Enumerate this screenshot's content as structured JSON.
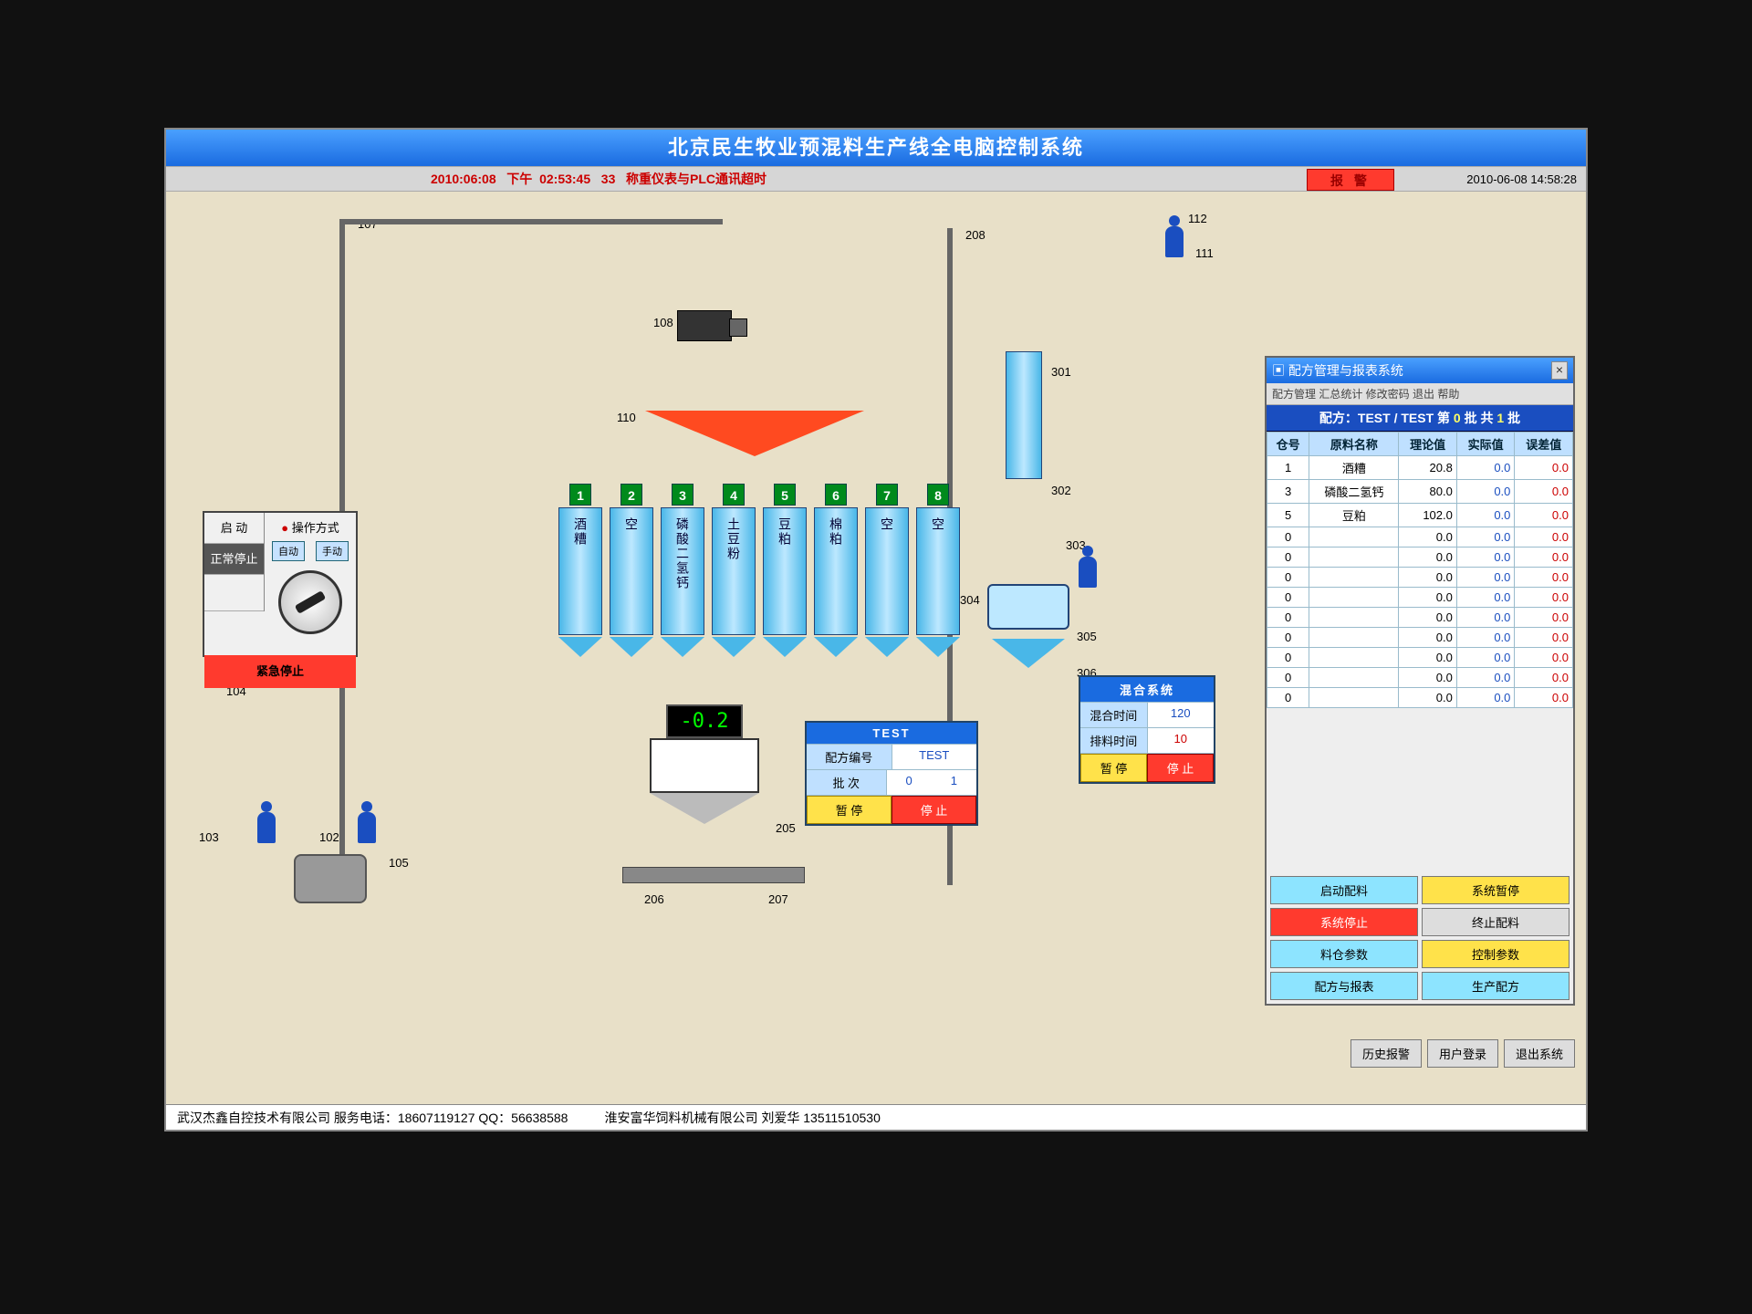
{
  "colors": {
    "title_bg_1": "#4aa0ff",
    "title_bg_2": "#1a6be0",
    "canvas_bg": "#e8e0c8",
    "hopper": "#49b7e8",
    "hopper_light": "#bde8ff",
    "alarm_red": "#ff3a2e",
    "btn_yellow": "#ffe24a",
    "hopper_num_bg": "#008a1c",
    "distributor": "#ff4a20",
    "readout_fg": "#00ff00"
  },
  "title": "北京民生牧业预混料生产线全电脑控制系统",
  "status": {
    "date": "2010:06:08",
    "ampm": "下午",
    "time": "02:53:45",
    "code": "33",
    "msg": "称重仪表与PLC通讯超时"
  },
  "alarm_label": "报 警",
  "datetime": "2010-06-08 14:58:28",
  "control_panel": {
    "start": "启 动",
    "stop": "正常停止",
    "estop": "紧急停止",
    "mode_title": "操作方式",
    "auto": "自动",
    "manual": "手动"
  },
  "hoppers": {
    "nums": [
      "1",
      "2",
      "3",
      "4",
      "5",
      "6",
      "7",
      "8"
    ],
    "labels": [
      "酒糟",
      "空",
      "磷酸二氢钙",
      "土豆粉",
      "豆粕",
      "棉粕",
      "空",
      "空"
    ]
  },
  "tags": {
    "t107": "107",
    "t108": "108",
    "t110": "110",
    "t104": "104",
    "t103": "103",
    "t102": "102",
    "t105": "105",
    "t205": "205",
    "t206": "206",
    "t207": "207",
    "t208": "208",
    "t301": "301",
    "t302": "302",
    "t303": "303",
    "t304": "304",
    "t305": "305",
    "t306": "306",
    "t111": "111",
    "t112": "112"
  },
  "weigh_value": "-0.2",
  "batch": {
    "title": "TEST",
    "row1_label": "配方编号",
    "row1_value": "TEST",
    "row2_label": "批  次",
    "row2_val_a": "0",
    "row2_val_b": "1",
    "btn_pause": "暂 停",
    "btn_stop": "停 止"
  },
  "mixer": {
    "title": "混合系统",
    "row1_label": "混合时间",
    "row1_value": "120",
    "row2_label": "排料时间",
    "row2_value": "10",
    "btn_pause": "暂 停",
    "btn_stop": "停 止"
  },
  "recipe": {
    "win_title": "配方管理与报表系统",
    "menu": "配方管理  汇总统计  修改密码  退出  帮助",
    "subtitle_a": "配方：TEST / TEST 第 ",
    "subtitle_b": "0",
    "subtitle_c": " 批 共 ",
    "subtitle_d": "1",
    "subtitle_e": " 批",
    "headers": [
      "仓号",
      "原料名称",
      "理论值",
      "实际值",
      "误差值"
    ],
    "rows": [
      [
        "1",
        "酒糟",
        "20.8",
        "0.0",
        "0.0"
      ],
      [
        "3",
        "磷酸二氢钙",
        "80.0",
        "0.0",
        "0.0"
      ],
      [
        "5",
        "豆粕",
        "102.0",
        "0.0",
        "0.0"
      ],
      [
        "0",
        "",
        "0.0",
        "0.0",
        "0.0"
      ],
      [
        "0",
        "",
        "0.0",
        "0.0",
        "0.0"
      ],
      [
        "0",
        "",
        "0.0",
        "0.0",
        "0.0"
      ],
      [
        "0",
        "",
        "0.0",
        "0.0",
        "0.0"
      ],
      [
        "0",
        "",
        "0.0",
        "0.0",
        "0.0"
      ],
      [
        "0",
        "",
        "0.0",
        "0.0",
        "0.0"
      ],
      [
        "0",
        "",
        "0.0",
        "0.0",
        "0.0"
      ],
      [
        "0",
        "",
        "0.0",
        "0.0",
        "0.0"
      ],
      [
        "0",
        "",
        "0.0",
        "0.0",
        "0.0"
      ]
    ],
    "btns": [
      "启动配料",
      "系统暂停",
      "系统停止",
      "终止配料",
      "料仓参数",
      "控制参数",
      "配方与报表",
      "生产配方"
    ]
  },
  "sys_btns": [
    "历史报警",
    "用户登录",
    "退出系统"
  ],
  "footer": {
    "left": "武汉杰鑫自控技术有限公司   服务电话：18607119127   QQ：56638588",
    "right": "淮安富华饲料机械有限公司   刘爱华  13511510530"
  }
}
